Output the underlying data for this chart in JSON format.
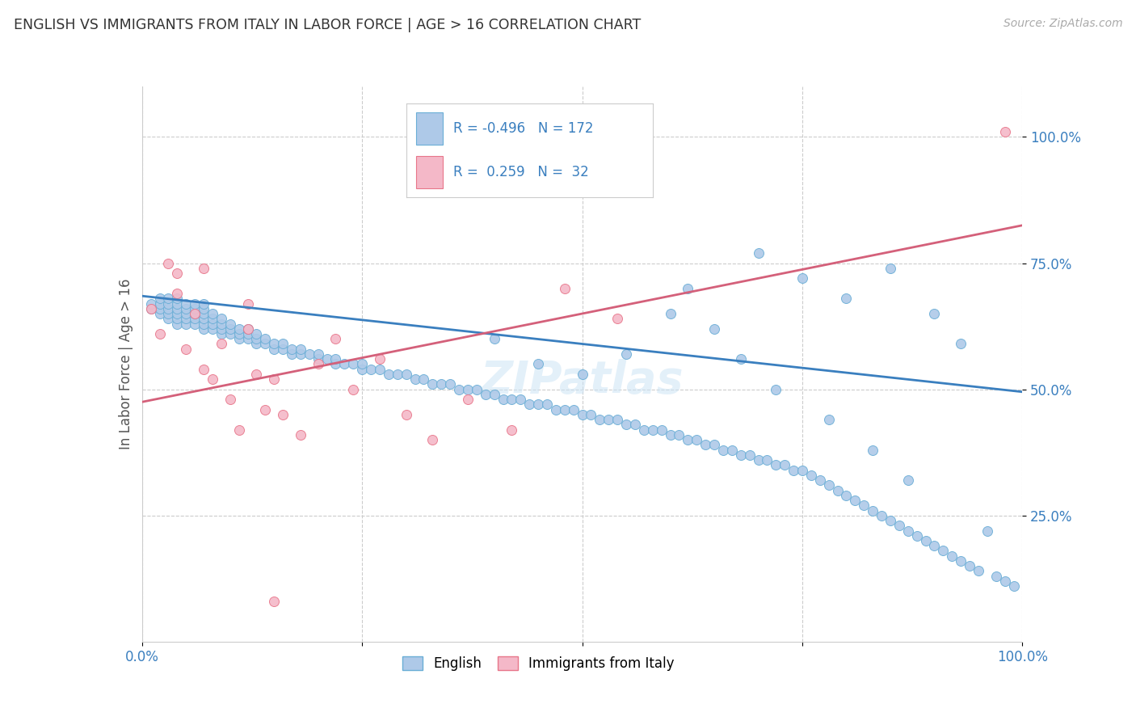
{
  "title": "ENGLISH VS IMMIGRANTS FROM ITALY IN LABOR FORCE | AGE > 16 CORRELATION CHART",
  "source_text": "Source: ZipAtlas.com",
  "ylabel": "In Labor Force | Age > 16",
  "xlim": [
    0.0,
    1.0
  ],
  "ylim": [
    0.0,
    1.1
  ],
  "blue_color": "#aec9e8",
  "blue_edge_color": "#6aaed6",
  "pink_color": "#f4b8c8",
  "pink_edge_color": "#e8768a",
  "blue_line_color": "#3a7fbf",
  "pink_line_color": "#d4607a",
  "text_color": "#3a7fbf",
  "title_color": "#333333",
  "axis_label_color": "#555555",
  "watermark": "ZIPatlas",
  "blue_trend": [
    0.685,
    0.495
  ],
  "pink_trend": [
    0.475,
    0.825
  ],
  "blue_scatter_x": [
    0.01,
    0.01,
    0.02,
    0.02,
    0.02,
    0.02,
    0.03,
    0.03,
    0.03,
    0.03,
    0.03,
    0.04,
    0.04,
    0.04,
    0.04,
    0.04,
    0.04,
    0.05,
    0.05,
    0.05,
    0.05,
    0.05,
    0.06,
    0.06,
    0.06,
    0.06,
    0.06,
    0.07,
    0.07,
    0.07,
    0.07,
    0.07,
    0.07,
    0.08,
    0.08,
    0.08,
    0.08,
    0.09,
    0.09,
    0.09,
    0.09,
    0.1,
    0.1,
    0.1,
    0.11,
    0.11,
    0.11,
    0.12,
    0.12,
    0.12,
    0.13,
    0.13,
    0.13,
    0.14,
    0.14,
    0.15,
    0.15,
    0.16,
    0.16,
    0.17,
    0.17,
    0.18,
    0.18,
    0.19,
    0.2,
    0.2,
    0.21,
    0.22,
    0.22,
    0.23,
    0.24,
    0.25,
    0.25,
    0.26,
    0.27,
    0.28,
    0.29,
    0.3,
    0.31,
    0.32,
    0.33,
    0.34,
    0.35,
    0.36,
    0.37,
    0.38,
    0.39,
    0.4,
    0.41,
    0.42,
    0.43,
    0.44,
    0.45,
    0.46,
    0.47,
    0.48,
    0.49,
    0.5,
    0.51,
    0.52,
    0.53,
    0.54,
    0.55,
    0.56,
    0.57,
    0.58,
    0.59,
    0.6,
    0.61,
    0.62,
    0.63,
    0.64,
    0.65,
    0.66,
    0.67,
    0.68,
    0.69,
    0.7,
    0.71,
    0.72,
    0.73,
    0.74,
    0.75,
    0.76,
    0.77,
    0.78,
    0.79,
    0.8,
    0.81,
    0.82,
    0.83,
    0.84,
    0.85,
    0.86,
    0.87,
    0.88,
    0.89,
    0.9,
    0.91,
    0.92,
    0.93,
    0.94,
    0.95,
    0.97,
    0.98,
    0.99,
    0.4,
    0.45,
    0.5,
    0.55,
    0.6,
    0.62,
    0.65,
    0.68,
    0.7,
    0.72,
    0.75,
    0.78,
    0.8,
    0.83,
    0.85,
    0.87,
    0.9,
    0.93,
    0.96
  ],
  "blue_scatter_y": [
    0.66,
    0.67,
    0.65,
    0.66,
    0.67,
    0.68,
    0.64,
    0.65,
    0.66,
    0.67,
    0.68,
    0.63,
    0.64,
    0.65,
    0.66,
    0.67,
    0.68,
    0.63,
    0.64,
    0.65,
    0.66,
    0.67,
    0.63,
    0.64,
    0.65,
    0.66,
    0.67,
    0.62,
    0.63,
    0.64,
    0.65,
    0.66,
    0.67,
    0.62,
    0.63,
    0.64,
    0.65,
    0.61,
    0.62,
    0.63,
    0.64,
    0.61,
    0.62,
    0.63,
    0.6,
    0.61,
    0.62,
    0.6,
    0.61,
    0.62,
    0.59,
    0.6,
    0.61,
    0.59,
    0.6,
    0.58,
    0.59,
    0.58,
    0.59,
    0.57,
    0.58,
    0.57,
    0.58,
    0.57,
    0.56,
    0.57,
    0.56,
    0.55,
    0.56,
    0.55,
    0.55,
    0.54,
    0.55,
    0.54,
    0.54,
    0.53,
    0.53,
    0.53,
    0.52,
    0.52,
    0.51,
    0.51,
    0.51,
    0.5,
    0.5,
    0.5,
    0.49,
    0.49,
    0.48,
    0.48,
    0.48,
    0.47,
    0.47,
    0.47,
    0.46,
    0.46,
    0.46,
    0.45,
    0.45,
    0.44,
    0.44,
    0.44,
    0.43,
    0.43,
    0.42,
    0.42,
    0.42,
    0.41,
    0.41,
    0.4,
    0.4,
    0.39,
    0.39,
    0.38,
    0.38,
    0.37,
    0.37,
    0.36,
    0.36,
    0.35,
    0.35,
    0.34,
    0.34,
    0.33,
    0.32,
    0.31,
    0.3,
    0.29,
    0.28,
    0.27,
    0.26,
    0.25,
    0.24,
    0.23,
    0.22,
    0.21,
    0.2,
    0.19,
    0.18,
    0.17,
    0.16,
    0.15,
    0.14,
    0.13,
    0.12,
    0.11,
    0.6,
    0.55,
    0.53,
    0.57,
    0.65,
    0.7,
    0.62,
    0.56,
    0.77,
    0.5,
    0.72,
    0.44,
    0.68,
    0.38,
    0.74,
    0.32,
    0.65,
    0.59,
    0.22
  ],
  "pink_scatter_x": [
    0.01,
    0.02,
    0.03,
    0.04,
    0.04,
    0.05,
    0.06,
    0.07,
    0.07,
    0.08,
    0.09,
    0.1,
    0.11,
    0.12,
    0.12,
    0.13,
    0.14,
    0.15,
    0.16,
    0.18,
    0.2,
    0.22,
    0.24,
    0.27,
    0.3,
    0.33,
    0.37,
    0.42,
    0.48,
    0.54,
    0.15,
    0.98
  ],
  "pink_scatter_y": [
    0.66,
    0.61,
    0.75,
    0.69,
    0.73,
    0.58,
    0.65,
    0.74,
    0.54,
    0.52,
    0.59,
    0.48,
    0.42,
    0.67,
    0.62,
    0.53,
    0.46,
    0.52,
    0.45,
    0.41,
    0.55,
    0.6,
    0.5,
    0.56,
    0.45,
    0.4,
    0.48,
    0.42,
    0.7,
    0.64,
    0.08,
    1.01
  ]
}
